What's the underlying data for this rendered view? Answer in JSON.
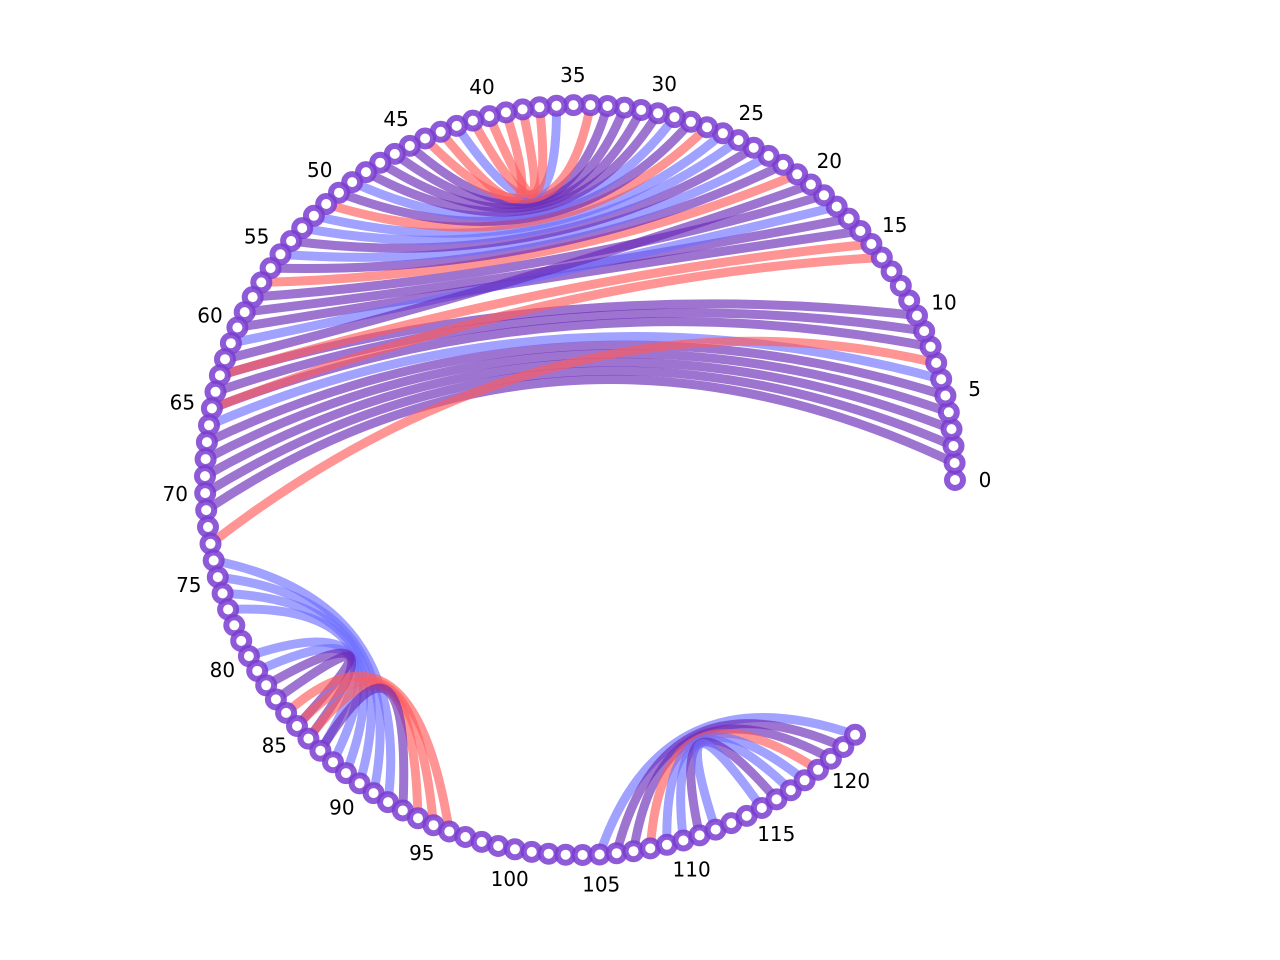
{
  "diagram": {
    "type": "arc-diagram",
    "node_count": 123,
    "tick_labels": [
      "0",
      "5",
      "10",
      "15",
      "20",
      "25",
      "30",
      "35",
      "40",
      "45",
      "50",
      "55",
      "60",
      "65",
      "70",
      "75",
      "80",
      "85",
      "90",
      "95",
      "100",
      "105",
      "110",
      "115",
      "120"
    ],
    "colors": {
      "red": "#ff5a5a",
      "blue": "#6f6fff",
      "purple": "#6a2ab8"
    },
    "groups": [
      {
        "apex_node": 37,
        "edges": [
          {
            "from": 1,
            "to": 71,
            "color": "purple"
          },
          {
            "from": 2,
            "to": 70,
            "color": "purple"
          },
          {
            "from": 3,
            "to": 69,
            "color": "purple"
          },
          {
            "from": 4,
            "to": 68,
            "color": "purple"
          },
          {
            "from": 5,
            "to": 67,
            "color": "purple"
          },
          {
            "from": 6,
            "to": 66,
            "color": "blue"
          },
          {
            "from": 7,
            "to": 73,
            "color": "red"
          },
          {
            "from": 8,
            "to": 65,
            "color": "purple"
          },
          {
            "from": 9,
            "to": 64,
            "color": "purple"
          },
          {
            "from": 10,
            "to": 63,
            "color": "purple"
          },
          {
            "from": 14,
            "to": 65,
            "color": "red"
          },
          {
            "from": 15,
            "to": 63,
            "color": "red"
          },
          {
            "from": 16,
            "to": 60,
            "color": "purple"
          },
          {
            "from": 17,
            "to": 59,
            "color": "purple"
          },
          {
            "from": 18,
            "to": 61,
            "color": "blue"
          },
          {
            "from": 19,
            "to": 58,
            "color": "purple"
          },
          {
            "from": 20,
            "to": 62,
            "color": "purple"
          },
          {
            "from": 21,
            "to": 57,
            "color": "red"
          },
          {
            "from": 22,
            "to": 56,
            "color": "purple"
          },
          {
            "from": 23,
            "to": 55,
            "color": "blue"
          },
          {
            "from": 24,
            "to": 54,
            "color": "purple"
          },
          {
            "from": 25,
            "to": 53,
            "color": "blue"
          },
          {
            "from": 26,
            "to": 52,
            "color": "blue"
          },
          {
            "from": 27,
            "to": 51,
            "color": "red"
          },
          {
            "from": 28,
            "to": 50,
            "color": "purple"
          },
          {
            "from": 29,
            "to": 49,
            "color": "blue"
          },
          {
            "from": 30,
            "to": 48,
            "color": "purple"
          },
          {
            "from": 31,
            "to": 47,
            "color": "purple"
          },
          {
            "from": 32,
            "to": 46,
            "color": "purple"
          },
          {
            "from": 33,
            "to": 45,
            "color": "purple"
          },
          {
            "from": 34,
            "to": 44,
            "color": "red"
          },
          {
            "from": 36,
            "to": 42,
            "color": "blue"
          },
          {
            "from": 37,
            "to": 41,
            "color": "red"
          },
          {
            "from": 38,
            "to": 40,
            "color": "red"
          },
          {
            "from": 39,
            "to": 43,
            "color": "red"
          }
        ]
      },
      {
        "apex_node": 83,
        "edges": [
          {
            "from": 74,
            "to": 92,
            "color": "blue"
          },
          {
            "from": 75,
            "to": 91,
            "color": "blue"
          },
          {
            "from": 76,
            "to": 90,
            "color": "blue"
          },
          {
            "from": 77,
            "to": 89,
            "color": "blue"
          },
          {
            "from": 80,
            "to": 88,
            "color": "blue"
          },
          {
            "from": 81,
            "to": 87,
            "color": "blue"
          },
          {
            "from": 82,
            "to": 86,
            "color": "purple"
          },
          {
            "from": 83,
            "to": 85,
            "color": "purple"
          },
          {
            "from": 84,
            "to": 96,
            "color": "red"
          },
          {
            "from": 85,
            "to": 95,
            "color": "red"
          },
          {
            "from": 86,
            "to": 94,
            "color": "red"
          },
          {
            "from": 87,
            "to": 93,
            "color": "purple"
          }
        ]
      },
      {
        "apex_node": 113,
        "edges": [
          {
            "from": 105,
            "to": 122,
            "color": "blue"
          },
          {
            "from": 106,
            "to": 121,
            "color": "purple"
          },
          {
            "from": 107,
            "to": 120,
            "color": "purple"
          },
          {
            "from": 108,
            "to": 119,
            "color": "red"
          },
          {
            "from": 109,
            "to": 118,
            "color": "blue"
          },
          {
            "from": 110,
            "to": 117,
            "color": "blue"
          },
          {
            "from": 111,
            "to": 116,
            "color": "purple"
          },
          {
            "from": 112,
            "to": 115,
            "color": "blue"
          }
        ]
      }
    ]
  }
}
